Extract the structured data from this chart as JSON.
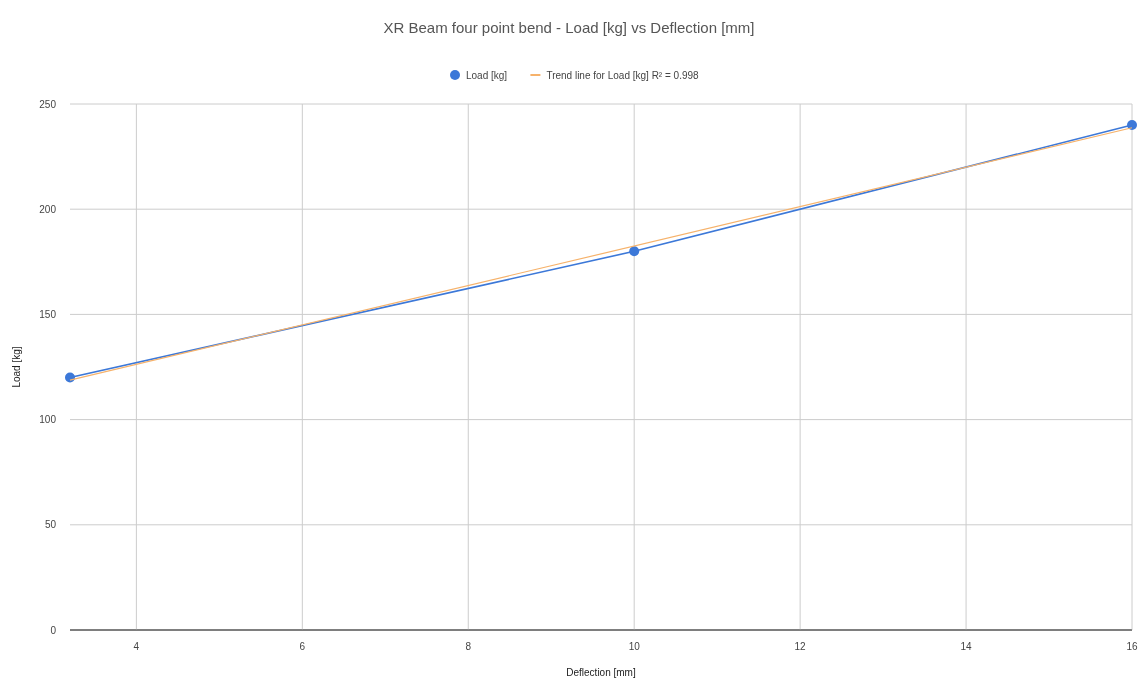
{
  "chart_data": {
    "type": "line",
    "title": "XR Beam four point bend - Load [kg] vs Deflection [mm]",
    "xlabel": "Deflection [mm]",
    "ylabel": "Load [kg]",
    "xlim": [
      3.2,
      16
    ],
    "xticks": [
      4,
      6,
      8,
      10,
      12,
      14,
      16
    ],
    "ylim": [
      0,
      250
    ],
    "yticks": [
      0,
      50,
      100,
      150,
      200,
      250
    ],
    "series": [
      {
        "name": "Load [kg]",
        "color": "#3c78d8",
        "x": [
          3.2,
          10,
          16
        ],
        "values": [
          120,
          180,
          240
        ],
        "marker": "circle"
      },
      {
        "name": "Trend line for Load [kg] R² = 0.998",
        "color": "#f6b26b",
        "x": [
          3.2,
          16
        ],
        "values": [
          118.8,
          238.7
        ],
        "marker": "none"
      }
    ],
    "grid": true,
    "legend": "top",
    "line_style": "solid"
  }
}
